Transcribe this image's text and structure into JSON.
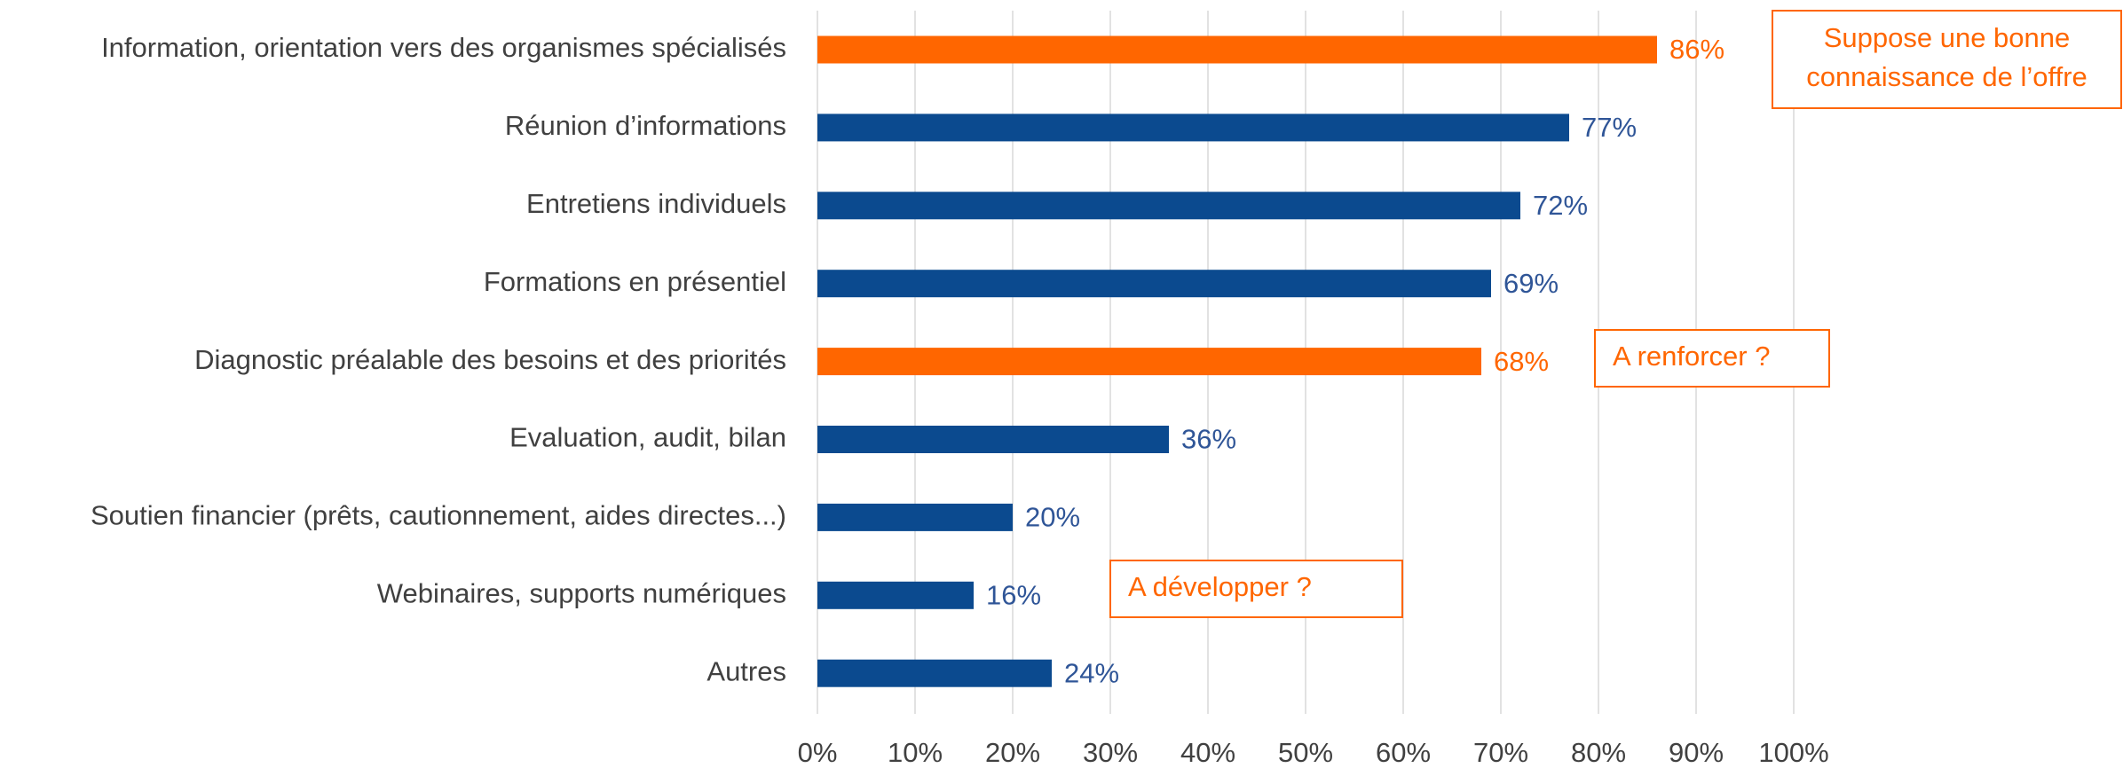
{
  "chart_data": {
    "type": "bar",
    "orientation": "horizontal",
    "categories": [
      "Information, orientation vers des organismes spécialisés",
      "Réunion d’informations",
      "Entretiens individuels",
      "Formations en présentiel",
      "Diagnostic préalable des besoins et des priorités",
      "Evaluation, audit, bilan",
      "Soutien financier (prêts, cautionnement, aides directes...)",
      "Webinaires, supports numériques",
      "Autres"
    ],
    "values": [
      86,
      77,
      72,
      69,
      68,
      36,
      20,
      16,
      24
    ],
    "value_labels": [
      "86%",
      "77%",
      "72%",
      "69%",
      "68%",
      "36%",
      "20%",
      "16%",
      "24%"
    ],
    "colors": [
      "#ff6600",
      "#0b4a8f",
      "#0b4a8f",
      "#0b4a8f",
      "#ff6600",
      "#0b4a8f",
      "#0b4a8f",
      "#0b4a8f",
      "#0b4a8f"
    ],
    "xlim": [
      0,
      100
    ],
    "xticks": [
      {
        "value": 0,
        "label": "0%"
      },
      {
        "value": 10,
        "label": "10%"
      },
      {
        "value": 20,
        "label": "20%"
      },
      {
        "value": 30,
        "label": "30%"
      },
      {
        "value": 40,
        "label": "40%"
      },
      {
        "value": 50,
        "label": "50%"
      },
      {
        "value": 60,
        "label": "60%"
      },
      {
        "value": 70,
        "label": "70%"
      },
      {
        "value": 80,
        "label": "80%"
      },
      {
        "value": 90,
        "label": "90%"
      },
      {
        "value": 100,
        "label": "100%"
      }
    ],
    "grid": true,
    "annotations": [
      {
        "text": [
          "Suppose une bonne",
          "connaissance de l’offre"
        ]
      },
      {
        "text": [
          "A renforcer ?"
        ]
      },
      {
        "text": [
          "A développer ?"
        ]
      }
    ]
  }
}
